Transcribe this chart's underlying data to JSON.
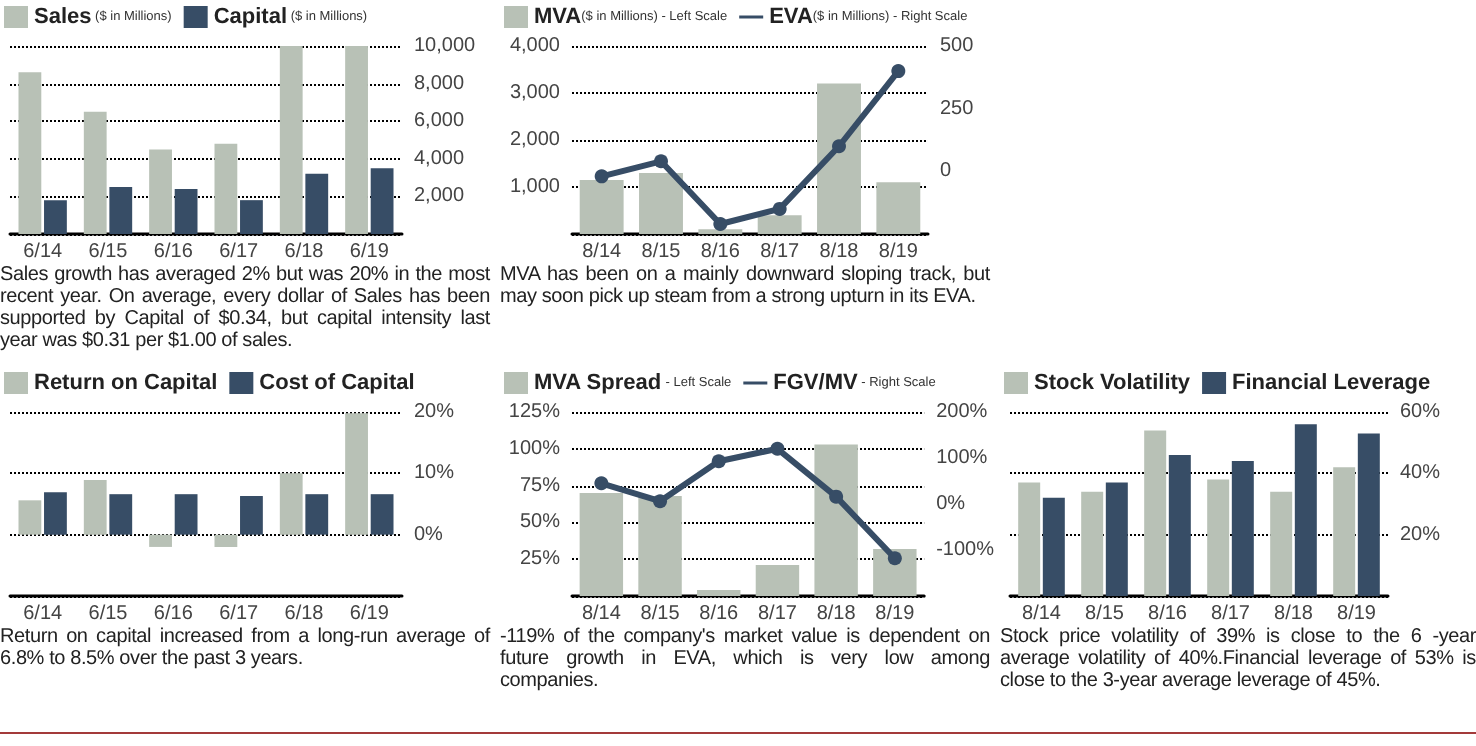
{
  "chart_data": [
    {
      "type": "bar",
      "categories": [
        "6/14",
        "6/15",
        "6/16",
        "6/17",
        "6/18",
        "6/19"
      ],
      "series": [
        {
          "name": "Sales ($ in Millions)",
          "color": "#b8c1b6",
          "values": [
            8600,
            6500,
            4500,
            4800,
            10000,
            10000
          ]
        },
        {
          "name": "Capital ($ in Millions)",
          "color": "#374d66",
          "values": [
            1800,
            2500,
            2400,
            1800,
            3200,
            3500
          ]
        }
      ],
      "ylim": [
        0,
        10000
      ],
      "yticks": [
        {
          "value": 2000,
          "label": "2,000"
        },
        {
          "value": 4000,
          "label": "4,000"
        },
        {
          "value": 6000,
          "label": "6,000"
        },
        {
          "value": 8000,
          "label": "8,000"
        },
        {
          "value": 10000,
          "label": "10,000"
        }
      ],
      "grid": "y",
      "legend": "top left",
      "annotations": [
        "Sales growth has averaged 2% but was 20% in the most recent year. On average, every dollar of Sales has been supported by Capital of $0.34, but capital intensity last year was $0.31 per $1.00 of sales."
      ]
    },
    {
      "type": "bar",
      "categories": [
        "8/14",
        "8/15",
        "8/16",
        "8/17",
        "8/18",
        "8/19"
      ],
      "series": [
        {
          "name": "MVA($ in Millions) - Left Scale",
          "color": "#b8c1b6",
          "values": [
            1150,
            1300,
            100,
            400,
            3200,
            1100
          ]
        },
        {
          "name": "EVA($ in Millions) - Right Scale",
          "type": "line",
          "axis": "y2",
          "color": "#374d66",
          "values": [
            -20,
            40,
            -210,
            -150,
            100,
            400
          ]
        }
      ],
      "ylim": [
        0,
        4000
      ],
      "yticks": [
        {
          "value": 1000,
          "label": "1,000"
        },
        {
          "value": 2000,
          "label": "2,000"
        },
        {
          "value": 3000,
          "label": "3,000"
        },
        {
          "value": 4000,
          "label": "4,000"
        }
      ],
      "y2lim": [
        -250,
        500
      ],
      "y2ticks": [
        0,
        250,
        500
      ],
      "grid": "y",
      "legend": "top left",
      "marker": "circle",
      "annotations": [
        "MVA has been on a mainly downward sloping track, but may soon pick up steam from a strong upturn in its EVA."
      ]
    },
    {
      "type": "bar",
      "categories": [
        "6/14",
        "6/15",
        "6/16",
        "6/17",
        "6/18",
        "6/19"
      ],
      "series": [
        {
          "name": "Return on Capital",
          "color": "#b8c1b6",
          "values": [
            5.6,
            8.9,
            -2,
            -2,
            10,
            19.8
          ]
        },
        {
          "name": "Cost of Capital",
          "color": "#374d66",
          "values": [
            6.9,
            6.6,
            6.6,
            6.3,
            6.6,
            6.6
          ]
        }
      ],
      "ylim": [
        -10,
        20
      ],
      "yticks": [
        {
          "value": 0,
          "label": "0%"
        },
        {
          "value": 10,
          "label": "10%"
        },
        {
          "value": 20,
          "label": "20%"
        }
      ],
      "grid": "y",
      "legend": "top left",
      "annotations": [
        "Return on capital increased from a long-run average of 6.8% to 8.5% over the past 3 years."
      ]
    },
    {
      "type": "bar",
      "categories": [
        "8/14",
        "8/15",
        "8/16",
        "8/17",
        "8/18",
        "8/19"
      ],
      "series": [
        {
          "name": "MVA Spread - Left Scale",
          "color": "#b8c1b6",
          "values": [
            70,
            68,
            4,
            21,
            103,
            32
          ]
        },
        {
          "name": "FGV/MV - Right Scale",
          "type": "line",
          "axis": "y2",
          "color": "#374d66",
          "values": [
            45,
            6,
            93,
            120,
            16,
            -118
          ]
        }
      ],
      "ylim": [
        0,
        125
      ],
      "yticks": [
        {
          "value": 25,
          "label": "25%"
        },
        {
          "value": 50,
          "label": "50%"
        },
        {
          "value": 75,
          "label": "75%"
        },
        {
          "value": 100,
          "label": "100%"
        },
        {
          "value": 125,
          "label": "125%"
        }
      ],
      "y2lim": [
        -200,
        200
      ],
      "y2ticks": [
        {
          "value": -100,
          "label": "-100%"
        },
        {
          "value": 0,
          "label": "0%"
        },
        {
          "value": 100,
          "label": "100%"
        },
        {
          "value": 200,
          "label": "200%"
        }
      ],
      "grid": "y",
      "legend": "top left",
      "marker": "circle",
      "annotations": [
        "-119% of the company's market value is dependent on future growth in EVA, which is very low among companies."
      ]
    },
    {
      "type": "bar",
      "categories": [
        "8/14",
        "8/15",
        "8/16",
        "8/17",
        "8/18",
        "8/19"
      ],
      "series": [
        {
          "name": "Stock Volatility",
          "color": "#b8c1b6",
          "values": [
            37,
            34,
            54,
            38,
            34,
            42
          ]
        },
        {
          "name": "Financial Leverage",
          "color": "#374d66",
          "values": [
            32,
            37,
            46,
            44,
            56,
            53
          ]
        }
      ],
      "ylim": [
        0,
        60
      ],
      "yticks": [
        {
          "value": 20,
          "label": "20%"
        },
        {
          "value": 40,
          "label": "40%"
        },
        {
          "value": 60,
          "label": "60%"
        }
      ],
      "grid": "y",
      "legend": "top left",
      "annotations": [
        "Stock price volatility of 39%  is close to the 6 -year average volatility of 40%.Financial leverage of 53% is close to the 3-year average leverage of 45%."
      ]
    }
  ]
}
